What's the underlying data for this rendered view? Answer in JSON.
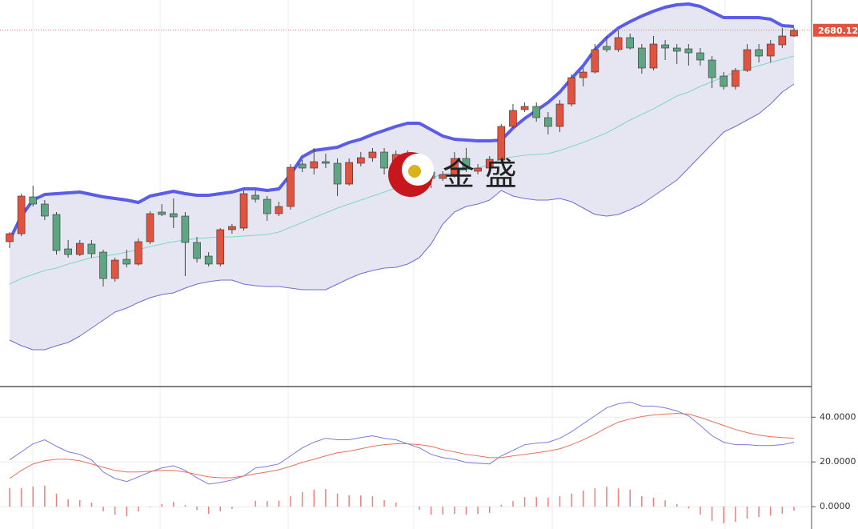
{
  "chart_data": [
    {
      "type": "candlestick",
      "watermark": "金 盛",
      "up_color": "#e0533e",
      "down_color": "#5fa583",
      "open": [
        2548,
        2553,
        2576,
        2571.5,
        2565,
        2543.5,
        2540,
        2546.5,
        2541.5,
        2525,
        2537,
        2534,
        2548,
        2566.5,
        2565.5,
        2564,
        2547.5,
        2539,
        2534,
        2555.5,
        2556.5,
        2577,
        2574.5,
        2565.5,
        2570,
        2596.5,
        2594,
        2598,
        2597,
        2584,
        2597,
        2600.5,
        2604,
        2594,
        2602.5,
        2594,
        2591.5,
        2587.5,
        2590,
        2600,
        2592,
        2594,
        2599,
        2620,
        2630.5,
        2632.5,
        2625.5,
        2620,
        2634,
        2650.5,
        2654,
        2670,
        2668,
        2675.5,
        2669,
        2656.5,
        2671,
        2669,
        2668.5,
        2666,
        2661.5,
        2651.5,
        2645,
        2655,
        2668,
        2664,
        2671,
        2676.5
      ],
      "high": [
        2554,
        2578,
        2583,
        2574,
        2566.5,
        2549,
        2549,
        2549,
        2543,
        2538,
        2543,
        2550,
        2567,
        2571.5,
        2575,
        2566.5,
        2551,
        2541.5,
        2556.5,
        2559,
        2580,
        2580,
        2576.5,
        2573,
        2596.5,
        2599,
        2606.5,
        2603,
        2600,
        2600,
        2604,
        2606.5,
        2606.5,
        2605,
        2605,
        2596.5,
        2596.5,
        2592,
        2604,
        2606.5,
        2596.5,
        2601.5,
        2621.5,
        2634,
        2635,
        2635,
        2629,
        2636.5,
        2652.5,
        2656.5,
        2671.5,
        2676.5,
        2680,
        2678,
        2671.5,
        2676.5,
        2674,
        2671.5,
        2671.5,
        2669,
        2664,
        2654,
        2656.5,
        2671.5,
        2671.5,
        2674,
        2681.5,
        2681.5
      ],
      "low": [
        2544,
        2551.5,
        2570,
        2561.5,
        2540,
        2538,
        2539,
        2538,
        2520,
        2523,
        2532,
        2533,
        2546.5,
        2564,
        2556.5,
        2526.5,
        2535,
        2532.5,
        2532.5,
        2553,
        2555,
        2572.5,
        2561,
        2564,
        2568,
        2591.5,
        2590,
        2594,
        2576.5,
        2583,
        2595,
        2598,
        2590,
        2589,
        2596.5,
        2586.5,
        2581.5,
        2586,
        2588,
        2591.5,
        2590,
        2592.5,
        2596.5,
        2619,
        2629,
        2623,
        2615,
        2616.5,
        2632.5,
        2645,
        2653,
        2666.5,
        2666.5,
        2668,
        2653,
        2655,
        2661.5,
        2659,
        2658,
        2658,
        2644,
        2643,
        2643,
        2654,
        2660,
        2660,
        2669,
        2676
      ],
      "close": [
        2553,
        2576.5,
        2571.5,
        2564,
        2542.5,
        2540,
        2547,
        2540.5,
        2525,
        2536.5,
        2534,
        2548,
        2565.5,
        2565,
        2563.5,
        2547.5,
        2537.5,
        2534,
        2555.5,
        2557.5,
        2578,
        2574.5,
        2565.5,
        2570,
        2594.5,
        2594,
        2598,
        2597,
        2584,
        2597.5,
        2600.5,
        2604,
        2594,
        2602.5,
        2599,
        2589,
        2587.5,
        2590,
        2600,
        2593.5,
        2594,
        2599.5,
        2620,
        2630,
        2632.5,
        2625.5,
        2620,
        2634,
        2650.5,
        2654,
        2668,
        2668,
        2675.5,
        2669,
        2656.5,
        2671.5,
        2669,
        2667,
        2666,
        2661.5,
        2650.5,
        2645,
        2655,
        2668,
        2664,
        2671.5,
        2676.5,
        2680.12
      ],
      "series": [
        {
          "color": "#5b5ce8",
          "width": 4,
          "values": [
            2549,
            2564,
            2574,
            2577.5,
            2578,
            2578.5,
            2579,
            2577.5,
            2576,
            2575,
            2574,
            2572.5,
            2576.5,
            2578,
            2579.5,
            2578,
            2577,
            2577,
            2578,
            2579,
            2581,
            2581,
            2580,
            2581,
            2590,
            2601,
            2605,
            2606,
            2607,
            2610,
            2612,
            2615,
            2617.5,
            2620,
            2622,
            2622,
            2618,
            2614,
            2612,
            2611.5,
            2611,
            2611,
            2611.5,
            2619,
            2625,
            2630,
            2635,
            2641.5,
            2650,
            2658,
            2668,
            2675.5,
            2681.5,
            2685.5,
            2689,
            2692,
            2694.5,
            2696,
            2696.5,
            2695,
            2691.5,
            2688,
            2688,
            2688,
            2688,
            2687,
            2683,
            2682.5
          ]
        },
        {
          "color": "#7fd6c6",
          "width": 1,
          "values": [
            2521.5,
            2525,
            2527.5,
            2530,
            2531.5,
            2534,
            2536,
            2538,
            2539,
            2540,
            2541.5,
            2543,
            2545,
            2546.5,
            2548,
            2549,
            2550,
            2550.5,
            2551,
            2551,
            2551.5,
            2552,
            2552.5,
            2554,
            2557,
            2560,
            2563,
            2566,
            2569,
            2571.5,
            2574,
            2576.5,
            2579,
            2581.5,
            2584,
            2586,
            2588,
            2590,
            2591.5,
            2593,
            2594,
            2596,
            2600,
            2601,
            2602,
            2602.5,
            2603,
            2605,
            2607.5,
            2610,
            2613,
            2616,
            2620,
            2624,
            2627.5,
            2631,
            2635,
            2639,
            2641.5,
            2645,
            2648,
            2651,
            2654,
            2656,
            2658,
            2660,
            2662,
            2664
          ]
        },
        {
          "color": "#6d6dd8",
          "width": 1,
          "values": [
            2486.5,
            2483,
            2480.5,
            2480.5,
            2483,
            2485,
            2489,
            2494,
            2499,
            2504,
            2506.5,
            2510,
            2513,
            2515,
            2516,
            2519,
            2521.5,
            2523,
            2524,
            2524,
            2521.5,
            2520.5,
            2520,
            2520,
            2519,
            2518,
            2518,
            2518,
            2521.5,
            2525,
            2528,
            2530,
            2531.5,
            2532,
            2534,
            2538,
            2546.5,
            2559,
            2566.5,
            2570,
            2571.5,
            2574,
            2580,
            2576.5,
            2575,
            2574,
            2574,
            2575,
            2573,
            2569,
            2565,
            2564,
            2565,
            2568,
            2571.5,
            2576.5,
            2581.5,
            2586.5,
            2594,
            2601.5,
            2609,
            2616.5,
            2620,
            2624,
            2628,
            2634,
            2641.5,
            2646.5
          ]
        }
      ],
      "band_fill": "#e6e6f2",
      "last_price": {
        "value": 2680.12,
        "label": "2680.120"
      },
      "last_price_color": "#e0533e",
      "ylim": [
        2458,
        2699
      ]
    },
    {
      "type": "macd",
      "series": [
        {
          "color": "#7a7ae0",
          "values": [
            20.9,
            24.5,
            28.1,
            29.9,
            27,
            24.5,
            23.4,
            20.9,
            15.5,
            12.6,
            11.2,
            13.3,
            15.5,
            17.3,
            18.3,
            16.2,
            12.9,
            10.1,
            10.8,
            11.9,
            13.7,
            17.3,
            18,
            19.1,
            22.7,
            26.3,
            28.8,
            30.6,
            29.9,
            29.9,
            30.9,
            31.7,
            30.6,
            29.9,
            28.1,
            26.3,
            23.4,
            21.9,
            21.2,
            19.8,
            19.4,
            19.1,
            22.7,
            25.2,
            27.7,
            28.4,
            28.8,
            30.6,
            33.5,
            37.1,
            40.6,
            44.2,
            46,
            46.8,
            45,
            45,
            44.2,
            42.8,
            40.6,
            36.3,
            31.7,
            28.8,
            27.7,
            27.7,
            27.3,
            27.3,
            27.7,
            28.8
          ]
        },
        {
          "color": "#e8705f",
          "values": [
            12.6,
            16.2,
            19.1,
            20.5,
            21.2,
            21.2,
            20.5,
            19.1,
            17.6,
            16.2,
            15.5,
            15.5,
            15.8,
            16.2,
            16.2,
            15.5,
            14.4,
            13.3,
            12.9,
            12.9,
            13.7,
            14.7,
            15.5,
            16.5,
            18,
            19.8,
            21.2,
            22.7,
            24.1,
            24.8,
            25.9,
            27,
            27.7,
            28.1,
            28.1,
            27.7,
            27,
            25.5,
            24.5,
            23.4,
            22.7,
            21.9,
            21.9,
            22.7,
            23.4,
            24.1,
            24.8,
            25.9,
            27.7,
            29.9,
            32.4,
            35.3,
            37.8,
            39.2,
            40.3,
            41,
            41.4,
            41.7,
            41.4,
            39.9,
            38.1,
            36.3,
            34.5,
            33.1,
            32,
            31.3,
            30.9,
            30.6
          ]
        }
      ],
      "histogram": {
        "color": "#ef7d7d",
        "values": [
          8.3,
          8.3,
          9.0,
          9.4,
          5.8,
          3.3,
          2.9,
          1.8,
          -2.1,
          -3.6,
          -4.3,
          -2.2,
          -0.3,
          1.1,
          2.1,
          0.7,
          -1.5,
          -3.2,
          -2.1,
          -1.0,
          0,
          2.6,
          2.5,
          2.6,
          4.7,
          6.5,
          7.6,
          7.9,
          5.8,
          5.1,
          5.0,
          4.7,
          2.9,
          1.8,
          0,
          -1.4,
          -3.6,
          -3.6,
          -3.3,
          -3.6,
          -3.3,
          -2.8,
          0.8,
          2.5,
          4.3,
          4.3,
          4.0,
          4.7,
          5.8,
          7.2,
          8.2,
          8.9,
          8.2,
          7.6,
          4.7,
          4.0,
          2.8,
          1.1,
          -0.8,
          -3.6,
          -6.4,
          -7.5,
          -6.8,
          -5.4,
          -4.7,
          -4.0,
          -3.2,
          -1.8
        ]
      },
      "ylim": [
        -10,
        53
      ],
      "yticks": [
        {
          "value": 40,
          "label": "40.0000"
        },
        {
          "value": 20,
          "label": "20.0000"
        },
        {
          "value": 0,
          "label": "0.0000"
        }
      ],
      "grid": true
    }
  ]
}
